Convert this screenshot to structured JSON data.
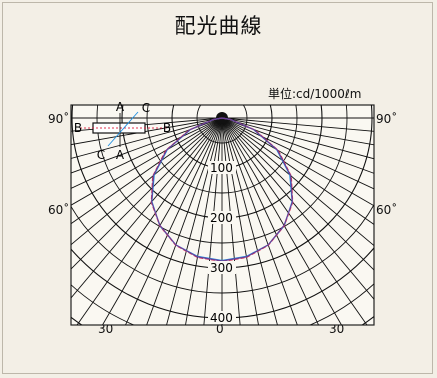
{
  "header": {
    "title": "配光曲線",
    "unit": "単位:cd/1000ℓm"
  },
  "labels": {
    "angle_left_top": "90˚",
    "angle_right_top": "90˚",
    "angle_left_mid": "60˚",
    "angle_right_mid": "60˚",
    "angle_bottom_left": "30˚",
    "angle_bottom_center": "0˚",
    "angle_bottom_right": "30˚"
  },
  "legend": {
    "a_top": "A",
    "a_bottom": "A",
    "b_left": "B",
    "b_right": "B",
    "c_top": "C",
    "c_bottom": "C"
  },
  "chart_data": {
    "type": "polar",
    "title": "配光曲線",
    "unit": "cd/1000lm",
    "radial_ticks": [
      "100",
      "200",
      "300",
      "400"
    ],
    "radial_values": [
      100,
      200,
      300,
      400
    ],
    "angle_labels": [
      "90˚",
      "60˚",
      "30˚",
      "0˚",
      "30˚",
      "60˚",
      "90˚"
    ],
    "grid": true,
    "series": [
      {
        "name": "A",
        "color": "#1e8fe1",
        "angles": [
          0,
          10,
          20,
          30,
          40,
          50,
          60,
          70,
          80,
          90
        ],
        "values": [
          285,
          281,
          270,
          249,
          218,
          177,
          126,
          67,
          17,
          0
        ]
      },
      {
        "name": "B",
        "color": "#e0304e",
        "angles": [
          0,
          10,
          20,
          30,
          40,
          50,
          60,
          70,
          80,
          90
        ],
        "values": [
          287,
          283,
          271,
          249,
          220,
          181,
          130,
          70,
          18,
          0
        ]
      },
      {
        "name": "C",
        "color": "#6a3f96",
        "angles": [
          0,
          10,
          20,
          30,
          40,
          50,
          60,
          70,
          80,
          90
        ],
        "values": [
          286,
          282,
          270,
          248,
          219,
          179,
          128,
          68,
          17,
          0
        ]
      }
    ]
  }
}
